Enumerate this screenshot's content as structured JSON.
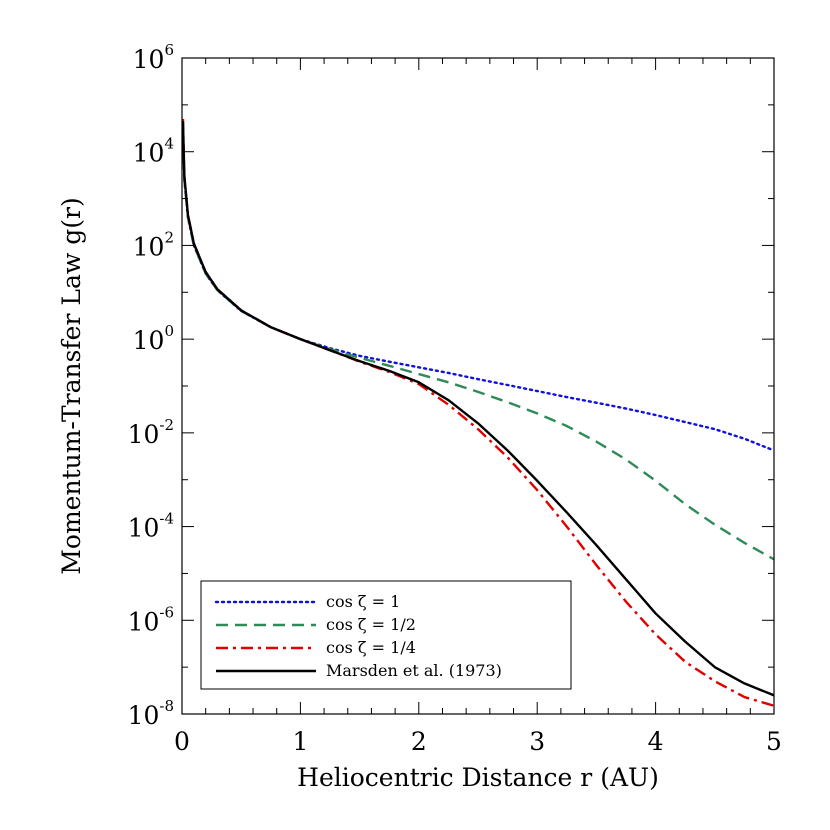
{
  "chart_data": {
    "type": "line",
    "xlabel": "Heliocentric Distance r (AU)",
    "ylabel": "Momentum-Transfer Law g(r)",
    "xlim": [
      0,
      5
    ],
    "ylim": [
      1e-08,
      1000000.0
    ],
    "yscale": "log",
    "grid": false,
    "legend_position": "bottom-left",
    "x_ticks": [
      "0",
      "1",
      "2",
      "3",
      "4",
      "5"
    ],
    "y_ticks": [
      {
        "base": "10",
        "exp": "-8"
      },
      {
        "base": "10",
        "exp": "-6"
      },
      {
        "base": "10",
        "exp": "-4"
      },
      {
        "base": "10",
        "exp": "-2"
      },
      {
        "base": "10",
        "exp": "0"
      },
      {
        "base": "10",
        "exp": "2"
      },
      {
        "base": "10",
        "exp": "4"
      },
      {
        "base": "10",
        "exp": "6"
      }
    ],
    "x": [
      0.008,
      0.02,
      0.05,
      0.1,
      0.2,
      0.3,
      0.5,
      0.75,
      1.0,
      1.25,
      1.5,
      1.75,
      2.0,
      2.25,
      2.5,
      2.75,
      3.0,
      3.25,
      3.5,
      3.75,
      4.0,
      4.25,
      4.5,
      4.75,
      5.0
    ],
    "series": [
      {
        "name": "cos ζ = 1",
        "color": "#1010e0",
        "dash": "dotted",
        "values": [
          20000,
          2500,
          400,
          100,
          25,
          11,
          4,
          1.8,
          1.0,
          0.64,
          0.44,
          0.33,
          0.25,
          0.19,
          0.14,
          0.105,
          0.078,
          0.058,
          0.044,
          0.033,
          0.024,
          0.017,
          0.012,
          0.0075,
          0.0042
        ]
      },
      {
        "name": "cos ζ = 1/2",
        "color": "#2e8b57",
        "dash": "dashed",
        "values": [
          20000,
          2500,
          400,
          100,
          25,
          11,
          4,
          1.8,
          1.0,
          0.61,
          0.4,
          0.27,
          0.18,
          0.12,
          0.075,
          0.045,
          0.026,
          0.014,
          0.0065,
          0.0027,
          0.00095,
          0.0003,
          0.00011,
          4.5e-05,
          2e-05
        ]
      },
      {
        "name": "cos ζ = 1/4",
        "color": "#e00000",
        "dash": "dashdot",
        "values": [
          50000,
          3000,
          450,
          110,
          27,
          11.5,
          4.1,
          1.8,
          1.0,
          0.58,
          0.33,
          0.2,
          0.11,
          0.04,
          0.012,
          0.003,
          0.0006,
          0.0001,
          1.5e-05,
          2.5e-06,
          5e-07,
          1.3e-07,
          5e-08,
          2.3e-08,
          1.5e-08
        ]
      },
      {
        "name": "Marsden et al. (1973)",
        "color": "#000000",
        "dash": "solid",
        "values": [
          45000,
          3000,
          450,
          110,
          27,
          11.5,
          4.1,
          1.8,
          1.0,
          0.58,
          0.34,
          0.21,
          0.12,
          0.05,
          0.016,
          0.0042,
          0.00095,
          0.0002,
          4e-05,
          7.5e-06,
          1.4e-06,
          3.5e-07,
          1e-07,
          4.5e-08,
          2.5e-08
        ]
      }
    ]
  }
}
